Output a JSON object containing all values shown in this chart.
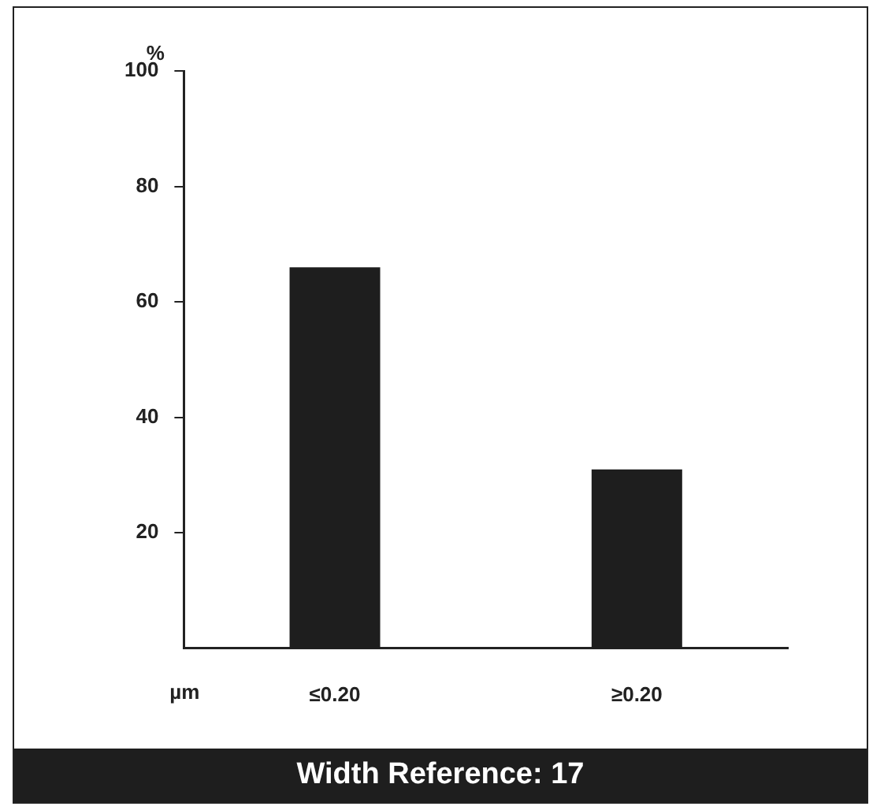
{
  "chart_data": {
    "type": "bar",
    "title": "Width Reference: 17",
    "ylabel": "%",
    "xlabel": "µm",
    "categories": [
      "≤0.20",
      "≥0.20"
    ],
    "values": [
      66,
      31
    ],
    "color": "#1e1e1e",
    "ylim": [
      0,
      100
    ],
    "yticks": [
      20,
      40,
      60,
      80,
      100
    ],
    "grid": false,
    "legend": false
  }
}
